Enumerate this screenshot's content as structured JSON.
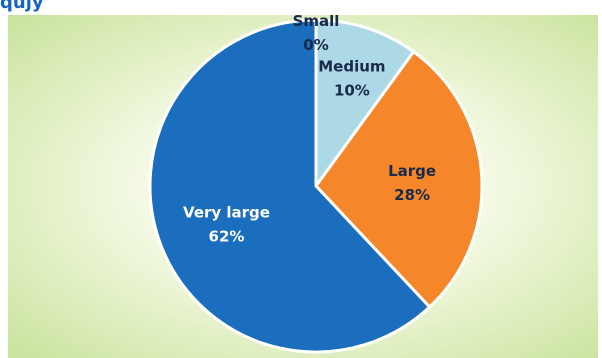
{
  "header": {
    "partial_title": "qujy"
  },
  "chart_data": {
    "type": "pie",
    "categories": [
      "Small",
      "Medium",
      "Large",
      "Very large"
    ],
    "values": [
      0,
      10,
      28,
      62
    ],
    "percent_labels": [
      "0%",
      "10%",
      "28%",
      "62%"
    ],
    "colors": [
      "#add8e6",
      "#add8e6",
      "#f5872a",
      "#1a6ebd"
    ],
    "label_colors": [
      "#1a2a4a",
      "#1a2a4a",
      "#1a2a4a",
      "#ffffff"
    ],
    "start_angle_deg": 0,
    "direction": "clockwise",
    "legend": "none",
    "background_colors": [
      "#ffffff",
      "#c9e39c"
    ]
  }
}
